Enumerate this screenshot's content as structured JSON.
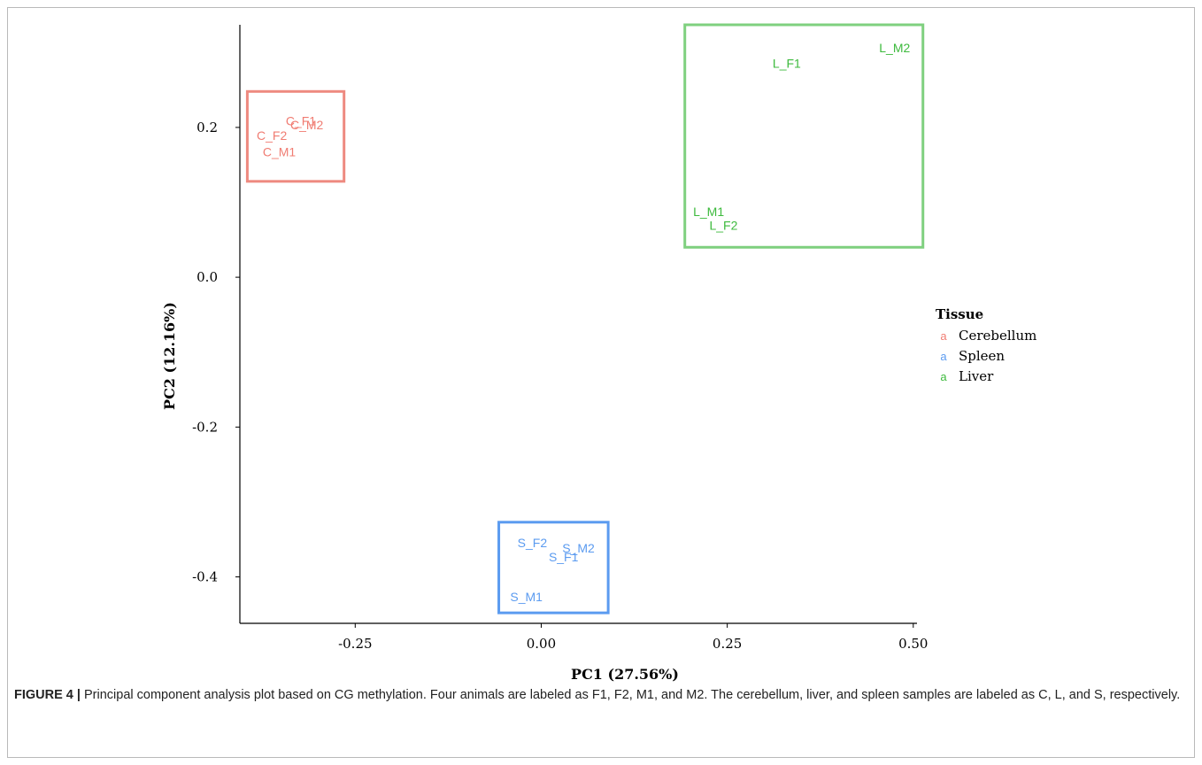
{
  "caption": {
    "figure_label": "FIGURE 4 |",
    "text": " Principal component analysis plot based on CG methylation. Four animals are labeled as F1, F2, M1, and M2. The cerebellum, liver, and spleen samples are labeled as C, L, and S, respectively."
  },
  "chart_data": {
    "type": "scatter",
    "xlabel": "PC1 (27.56%)",
    "ylabel": "PC2 (12.16%)",
    "xlim": [
      -0.405,
      0.505
    ],
    "ylim": [
      -0.462,
      0.337
    ],
    "xticks": [
      {
        "value": -0.25,
        "label": "-0.25"
      },
      {
        "value": 0.0,
        "label": "0.00"
      },
      {
        "value": 0.25,
        "label": "0.25"
      },
      {
        "value": 0.5,
        "label": "0.50"
      }
    ],
    "yticks": [
      {
        "value": 0.2,
        "label": "0.2"
      },
      {
        "value": 0.0,
        "label": "0.0"
      },
      {
        "value": -0.2,
        "label": "-0.2"
      },
      {
        "value": -0.4,
        "label": "-0.4"
      }
    ],
    "grid": false,
    "legend": {
      "title": "Tissue",
      "position": "right",
      "key_glyph": "a",
      "entries": [
        {
          "label": "Cerebellum",
          "color": "#F07C72"
        },
        {
          "label": "Spleen",
          "color": "#5B9BF0"
        },
        {
          "label": "Liver",
          "color": "#3DBA3D"
        }
      ]
    },
    "series": [
      {
        "name": "Cerebellum",
        "color": "#F07C72",
        "box_color": "#EE8A80",
        "box": {
          "xmin": -0.395,
          "xmax": -0.265,
          "ymin": 0.128,
          "ymax": 0.248
        },
        "points": [
          {
            "label": "C_F1",
            "x": -0.323,
            "y": 0.207
          },
          {
            "label": "C_M2",
            "x": -0.315,
            "y": 0.202
          },
          {
            "label": "C_F2",
            "x": -0.362,
            "y": 0.188
          },
          {
            "label": "C_M1",
            "x": -0.352,
            "y": 0.166
          }
        ]
      },
      {
        "name": "Liver",
        "color": "#3DBA3D",
        "box_color": "#7FD07F",
        "box": {
          "xmin": 0.193,
          "xmax": 0.513,
          "ymin": 0.04,
          "ymax": 0.337
        },
        "points": [
          {
            "label": "L_M2",
            "x": 0.475,
            "y": 0.305
          },
          {
            "label": "L_F1",
            "x": 0.33,
            "y": 0.284
          },
          {
            "label": "L_M1",
            "x": 0.225,
            "y": 0.086
          },
          {
            "label": "L_F2",
            "x": 0.245,
            "y": 0.068
          }
        ]
      },
      {
        "name": "Spleen",
        "color": "#5B9BF0",
        "box_color": "#5B9BF0",
        "box": {
          "xmin": -0.057,
          "xmax": 0.09,
          "ymin": -0.448,
          "ymax": -0.327
        },
        "points": [
          {
            "label": "S_F2",
            "x": -0.012,
            "y": -0.356
          },
          {
            "label": "S_M2",
            "x": 0.05,
            "y": -0.363
          },
          {
            "label": "S_F1",
            "x": 0.03,
            "y": -0.375
          },
          {
            "label": "S_M1",
            "x": -0.02,
            "y": -0.428
          }
        ]
      }
    ]
  }
}
